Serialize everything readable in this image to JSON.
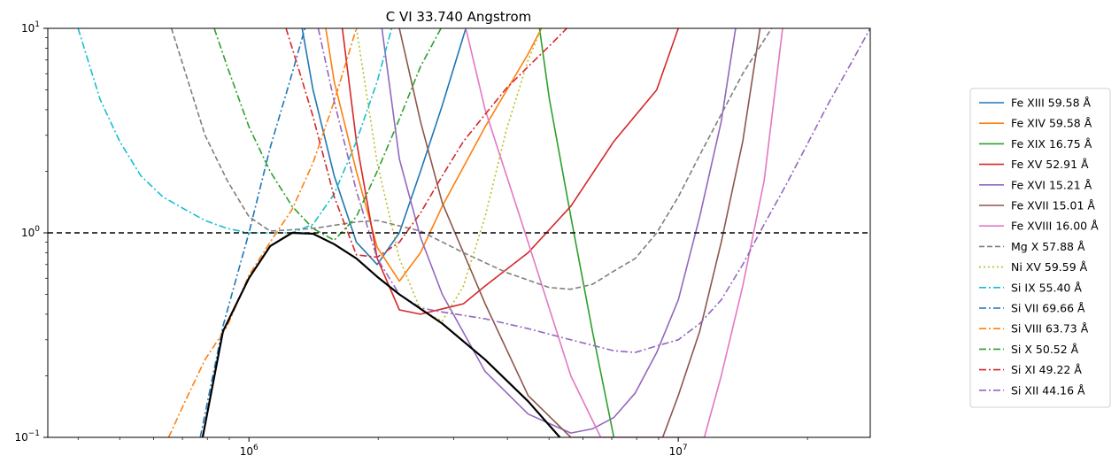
{
  "chart_data": {
    "type": "line",
    "title": "C VI 33.740 Angstrom",
    "xlabel": "",
    "ylabel": "",
    "xscale": "log",
    "yscale": "log",
    "xlim": [
      340000,
      28000000
    ],
    "ylim": [
      0.1,
      10
    ],
    "x_major_ticks": [
      {
        "value": 1000000,
        "base": "10",
        "exp": "6"
      },
      {
        "value": 10000000,
        "base": "10",
        "exp": "7"
      }
    ],
    "y_major_ticks": [
      {
        "value": 0.1,
        "base": "10",
        "exp": "−1"
      },
      {
        "value": 1,
        "base": "10",
        "exp": "0"
      },
      {
        "value": 10,
        "base": "10",
        "exp": "1"
      }
    ],
    "grid": false,
    "legend_position": "right, outside plot",
    "reference_line": {
      "y": 1.0,
      "color": "#000000",
      "style": "dashed"
    },
    "envelope": {
      "color": "#000000",
      "points": [
        [
          780000,
          0.1
        ],
        [
          870000,
          0.33
        ],
        [
          1000000,
          0.6
        ],
        [
          1120000,
          0.86
        ],
        [
          1260000,
          1.0
        ],
        [
          1410000,
          0.99
        ],
        [
          1580000,
          0.88
        ],
        [
          1780000,
          0.75
        ],
        [
          1990000,
          0.61
        ],
        [
          2240000,
          0.5
        ],
        [
          2820000,
          0.36
        ],
        [
          3550000,
          0.24
        ],
        [
          4470000,
          0.15
        ],
        [
          5300000,
          0.1
        ]
      ]
    },
    "series": [
      {
        "name": "Fe XIII 59.58 Å",
        "color": "#1f77b4",
        "style": "solid",
        "points": [
          [
            1330000,
            10
          ],
          [
            1410000,
            5.0
          ],
          [
            1580000,
            1.9
          ],
          [
            1780000,
            0.9
          ],
          [
            1990000,
            0.7
          ],
          [
            2240000,
            1.0
          ],
          [
            2510000,
            2.0
          ],
          [
            2820000,
            4.2
          ],
          [
            3200000,
            10
          ]
        ]
      },
      {
        "name": "Fe XIV 59.58 Å",
        "color": "#ff7f0e",
        "style": "solid",
        "points": [
          [
            1510000,
            10
          ],
          [
            1580000,
            5.5
          ],
          [
            1780000,
            2.0
          ],
          [
            1990000,
            0.85
          ],
          [
            2240000,
            0.58
          ],
          [
            2510000,
            0.8
          ],
          [
            2820000,
            1.35
          ],
          [
            3550000,
            3.3
          ],
          [
            4470000,
            7.5
          ],
          [
            4800000,
            10
          ]
        ]
      },
      {
        "name": "Fe XIX 16.75 Å",
        "color": "#2ca02c",
        "style": "solid",
        "points": [
          [
            4750000,
            10
          ],
          [
            5010000,
            4.5
          ],
          [
            5620000,
            1.2
          ],
          [
            6310000,
            0.33
          ],
          [
            7080000,
            0.1
          ]
        ]
      },
      {
        "name": "Fe XV 52.91 Å",
        "color": "#d62728",
        "style": "solid",
        "points": [
          [
            1650000,
            10
          ],
          [
            1780000,
            2.8
          ],
          [
            1990000,
            0.75
          ],
          [
            2240000,
            0.42
          ],
          [
            2510000,
            0.4
          ],
          [
            3160000,
            0.45
          ],
          [
            3550000,
            0.55
          ],
          [
            4470000,
            0.8
          ],
          [
            5620000,
            1.35
          ],
          [
            7080000,
            2.8
          ],
          [
            8910000,
            5.0
          ],
          [
            10000000,
            10
          ]
        ]
      },
      {
        "name": "Fe XVI 15.21 Å",
        "color": "#9467bd",
        "style": "solid",
        "points": [
          [
            2040000,
            10
          ],
          [
            2240000,
            2.3
          ],
          [
            2510000,
            0.95
          ],
          [
            2820000,
            0.5
          ],
          [
            3550000,
            0.21
          ],
          [
            4470000,
            0.13
          ],
          [
            5620000,
            0.105
          ],
          [
            6310000,
            0.11
          ],
          [
            7080000,
            0.125
          ],
          [
            7940000,
            0.165
          ],
          [
            8910000,
            0.26
          ],
          [
            10000000,
            0.47
          ],
          [
            11220000,
            1.2
          ],
          [
            12590000,
            3.5
          ],
          [
            13600000,
            10
          ]
        ]
      },
      {
        "name": "Fe XVII 15.01 Å",
        "color": "#8c564b",
        "style": "solid",
        "points": [
          [
            2240000,
            10
          ],
          [
            2510000,
            3.5
          ],
          [
            2820000,
            1.4
          ],
          [
            3550000,
            0.45
          ],
          [
            4470000,
            0.16
          ],
          [
            5620000,
            0.1
          ],
          [
            9200000,
            0.1
          ],
          [
            10000000,
            0.16
          ],
          [
            11220000,
            0.33
          ],
          [
            12590000,
            0.9
          ],
          [
            14130000,
            2.8
          ],
          [
            15500000,
            10
          ]
        ]
      },
      {
        "name": "Fe XVIII 16.00 Å",
        "color": "#e377c2",
        "style": "solid",
        "points": [
          [
            3200000,
            10
          ],
          [
            3550000,
            4.0
          ],
          [
            4470000,
            0.9
          ],
          [
            5620000,
            0.2
          ],
          [
            6600000,
            0.1
          ],
          [
            11500000,
            0.1
          ],
          [
            12590000,
            0.2
          ],
          [
            14130000,
            0.55
          ],
          [
            15850000,
            1.8
          ],
          [
            17500000,
            10
          ]
        ]
      },
      {
        "name": "Mg X 57.88 Å",
        "color": "#7f7f7f",
        "style": "dashed",
        "points": [
          [
            660000,
            10
          ],
          [
            790000,
            3.0
          ],
          [
            890000,
            1.8
          ],
          [
            1000000,
            1.2
          ],
          [
            1120000,
            1.02
          ],
          [
            1410000,
            1.05
          ],
          [
            1780000,
            1.13
          ],
          [
            1990000,
            1.15
          ],
          [
            2510000,
            1.02
          ],
          [
            3160000,
            0.8
          ],
          [
            3980000,
            0.64
          ],
          [
            5010000,
            0.54
          ],
          [
            5620000,
            0.53
          ],
          [
            6310000,
            0.56
          ],
          [
            7080000,
            0.65
          ],
          [
            7940000,
            0.75
          ],
          [
            8910000,
            1.0
          ],
          [
            10000000,
            1.5
          ],
          [
            11220000,
            2.4
          ],
          [
            12590000,
            3.8
          ],
          [
            14130000,
            6.0
          ],
          [
            16500000,
            10
          ]
        ]
      },
      {
        "name": "Ni XV 59.59 Å",
        "color": "#bcbd22",
        "style": "dotted",
        "points": [
          [
            1780000,
            10
          ],
          [
            1990000,
            2.2
          ],
          [
            2240000,
            0.75
          ],
          [
            2510000,
            0.42
          ],
          [
            2820000,
            0.37
          ],
          [
            3160000,
            0.55
          ],
          [
            3550000,
            1.2
          ],
          [
            3980000,
            3.2
          ],
          [
            4470000,
            7.0
          ],
          [
            4800000,
            10
          ]
        ]
      },
      {
        "name": "Si IX 55.40 Å",
        "color": "#17becf",
        "style": "dashdot",
        "points": [
          [
            400000,
            10
          ],
          [
            450000,
            4.5
          ],
          [
            500000,
            2.8
          ],
          [
            560000,
            1.9
          ],
          [
            630000,
            1.5
          ],
          [
            710000,
            1.3
          ],
          [
            790000,
            1.15
          ],
          [
            890000,
            1.05
          ],
          [
            1000000,
            1.0
          ],
          [
            1260000,
            1.0
          ],
          [
            1410000,
            1.1
          ],
          [
            1580000,
            1.55
          ],
          [
            1780000,
            2.8
          ],
          [
            1990000,
            5.5
          ],
          [
            2150000,
            10
          ]
        ]
      },
      {
        "name": "Si VII 69.66 Å",
        "color": "#1f77b4",
        "style": "dashdot",
        "points": [
          [
            770000,
            0.1
          ],
          [
            870000,
            0.35
          ],
          [
            1000000,
            1.0
          ],
          [
            1120000,
            2.6
          ],
          [
            1260000,
            6.0
          ],
          [
            1350000,
            10
          ]
        ]
      },
      {
        "name": "Si VIII 63.73 Å",
        "color": "#ff7f0e",
        "style": "dashdot",
        "points": [
          [
            650000,
            0.1
          ],
          [
            710000,
            0.15
          ],
          [
            790000,
            0.24
          ],
          [
            890000,
            0.35
          ],
          [
            1000000,
            0.62
          ],
          [
            1120000,
            0.9
          ],
          [
            1260000,
            1.3
          ],
          [
            1410000,
            2.2
          ],
          [
            1580000,
            4.4
          ],
          [
            1780000,
            10
          ]
        ]
      },
      {
        "name": "Si X 50.52 Å",
        "color": "#2ca02c",
        "style": "dashdot",
        "points": [
          [
            830000,
            10
          ],
          [
            890000,
            6.5
          ],
          [
            1000000,
            3.3
          ],
          [
            1120000,
            2.0
          ],
          [
            1260000,
            1.35
          ],
          [
            1410000,
            1.05
          ],
          [
            1580000,
            0.92
          ],
          [
            1780000,
            1.2
          ],
          [
            1990000,
            2.0
          ],
          [
            2240000,
            3.6
          ],
          [
            2510000,
            6.5
          ],
          [
            2800000,
            10
          ]
        ]
      },
      {
        "name": "Si XI 49.22 Å",
        "color": "#d62728",
        "style": "dashdot",
        "points": [
          [
            1220000,
            10
          ],
          [
            1300000,
            6.5
          ],
          [
            1410000,
            3.7
          ],
          [
            1580000,
            1.5
          ],
          [
            1780000,
            0.78
          ],
          [
            1990000,
            0.76
          ],
          [
            2240000,
            0.9
          ],
          [
            2510000,
            1.25
          ],
          [
            2820000,
            1.9
          ],
          [
            3160000,
            2.8
          ],
          [
            3550000,
            3.8
          ],
          [
            3980000,
            5.1
          ],
          [
            4470000,
            6.5
          ],
          [
            5010000,
            8.2
          ],
          [
            5500000,
            10
          ]
        ]
      },
      {
        "name": "Si XII 44.16 Å",
        "color": "#9467bd",
        "style": "dashdot",
        "points": [
          [
            1450000,
            10
          ],
          [
            1580000,
            4.4
          ],
          [
            1780000,
            1.6
          ],
          [
            1990000,
            0.75
          ],
          [
            2240000,
            0.5
          ],
          [
            2510000,
            0.43
          ],
          [
            2820000,
            0.41
          ],
          [
            3550000,
            0.38
          ],
          [
            4470000,
            0.34
          ],
          [
            5620000,
            0.3
          ],
          [
            7080000,
            0.265
          ],
          [
            7940000,
            0.26
          ],
          [
            8910000,
            0.28
          ],
          [
            10000000,
            0.3
          ],
          [
            11220000,
            0.36
          ],
          [
            12590000,
            0.47
          ],
          [
            14130000,
            0.7
          ],
          [
            15850000,
            1.1
          ],
          [
            17780000,
            1.7
          ],
          [
            19950000,
            2.7
          ],
          [
            22390000,
            4.3
          ],
          [
            25120000,
            6.6
          ],
          [
            28000000,
            10
          ]
        ]
      }
    ]
  }
}
